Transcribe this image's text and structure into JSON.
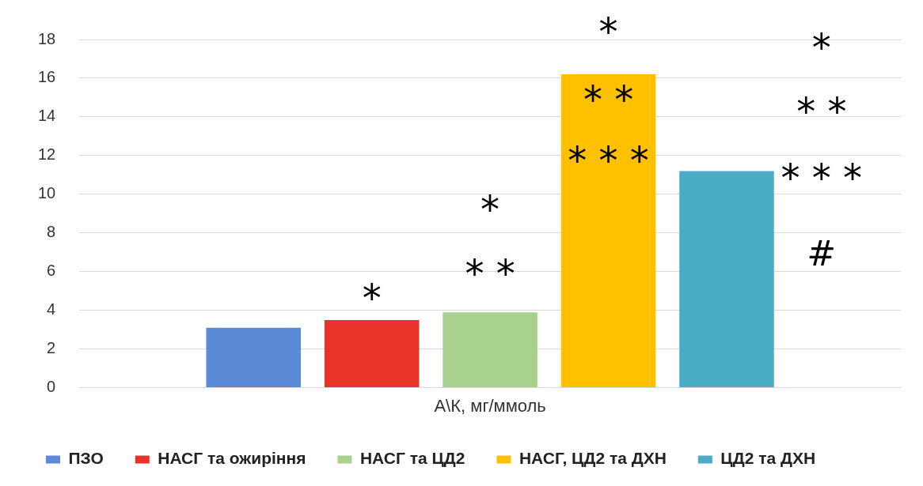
{
  "chart_data": {
    "type": "bar",
    "categories": [
      "А\\К, мг/ммоль"
    ],
    "series": [
      {
        "name": "ПЗО",
        "color": "#5b8bd6",
        "values": [
          3.1
        ]
      },
      {
        "name": "НАСГ та ожиріння",
        "color": "#e8332a",
        "values": [
          3.5
        ]
      },
      {
        "name": "НАСГ та ЦД2",
        "color": "#a9d18e",
        "values": [
          3.9
        ]
      },
      {
        "name": "НАСГ, ЦД2 та ДХН",
        "color": "#ffc000",
        "values": [
          16.2
        ]
      },
      {
        "name": "ЦД2 та ДХН",
        "color": "#4bacc6",
        "values": [
          11.2
        ]
      }
    ],
    "ylim": [
      0,
      18
    ],
    "yticks": [
      0,
      2,
      4,
      6,
      8,
      10,
      12,
      14,
      16,
      18
    ],
    "grid": "y",
    "legend": "bottom",
    "annotations": [
      "*",
      "*",
      "* *",
      "*",
      "* *",
      "* * *",
      "*",
      "* *",
      "* * *",
      "#"
    ]
  }
}
